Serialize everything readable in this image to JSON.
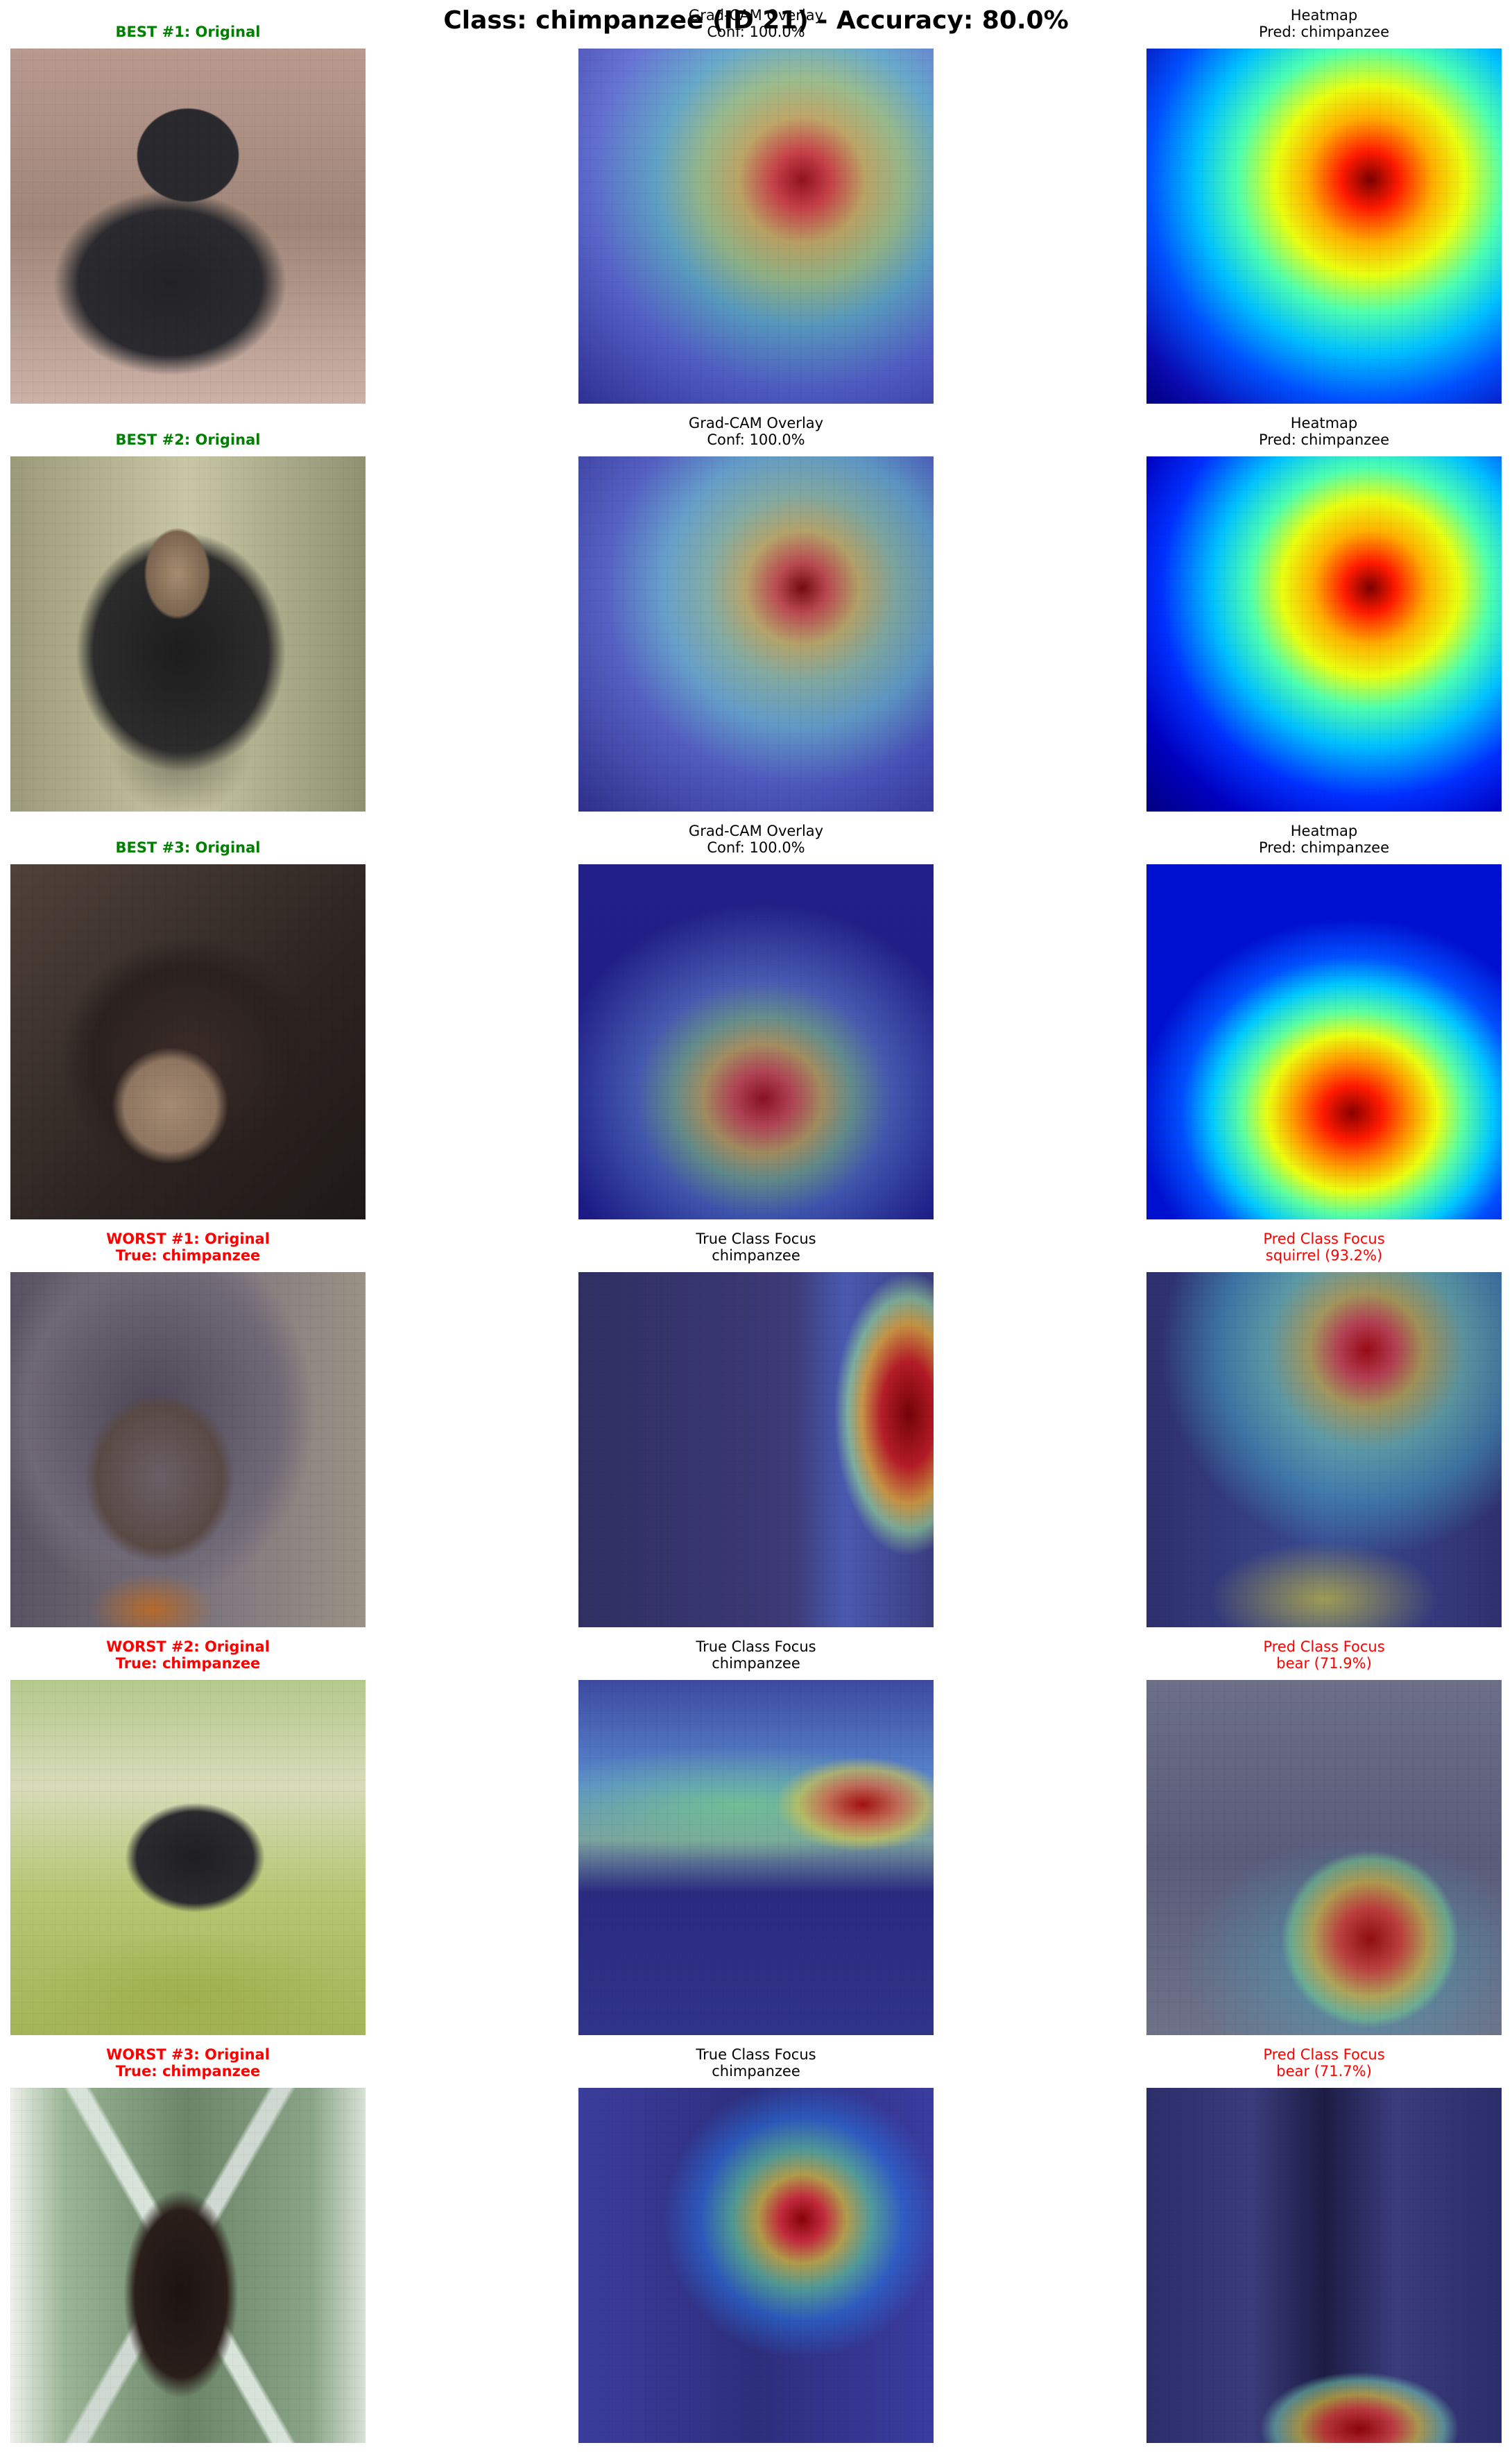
{
  "suptitle": "Class: chimpanzee (ID 21) - Accuracy: 80.0%",
  "colors": {
    "best": "#008000",
    "worst": "#ff0000",
    "neutral": "#000000"
  },
  "rows": [
    {
      "c0": {
        "line1": "BEST #1: Original",
        "line2": ""
      },
      "c1": {
        "line1": "Grad-CAM Overlay",
        "line2": "Conf: 100.0%"
      },
      "c2": {
        "line1": "Heatmap",
        "line2": "Pred: chimpanzee"
      }
    },
    {
      "c0": {
        "line1": "BEST #2: Original",
        "line2": ""
      },
      "c1": {
        "line1": "Grad-CAM Overlay",
        "line2": "Conf: 100.0%"
      },
      "c2": {
        "line1": "Heatmap",
        "line2": "Pred: chimpanzee"
      }
    },
    {
      "c0": {
        "line1": "BEST #3: Original",
        "line2": ""
      },
      "c1": {
        "line1": "Grad-CAM Overlay",
        "line2": "Conf: 100.0%"
      },
      "c2": {
        "line1": "Heatmap",
        "line2": "Pred: chimpanzee"
      }
    },
    {
      "c0": {
        "line1": "WORST #1: Original",
        "line2": "True: chimpanzee"
      },
      "c1": {
        "line1": "True Class Focus",
        "line2": "chimpanzee"
      },
      "c2": {
        "line1": "Pred Class Focus",
        "line2": "squirrel (93.2%)"
      }
    },
    {
      "c0": {
        "line1": "WORST #2: Original",
        "line2": "True: chimpanzee"
      },
      "c1": {
        "line1": "True Class Focus",
        "line2": "chimpanzee"
      },
      "c2": {
        "line1": "Pred Class Focus",
        "line2": "bear (71.9%)"
      }
    },
    {
      "c0": {
        "line1": "WORST #3: Original",
        "line2": "True: chimpanzee"
      },
      "c1": {
        "line1": "True Class Focus",
        "line2": "chimpanzee"
      },
      "c2": {
        "line1": "Pred Class Focus",
        "line2": "bear (71.7%)"
      }
    }
  ]
}
